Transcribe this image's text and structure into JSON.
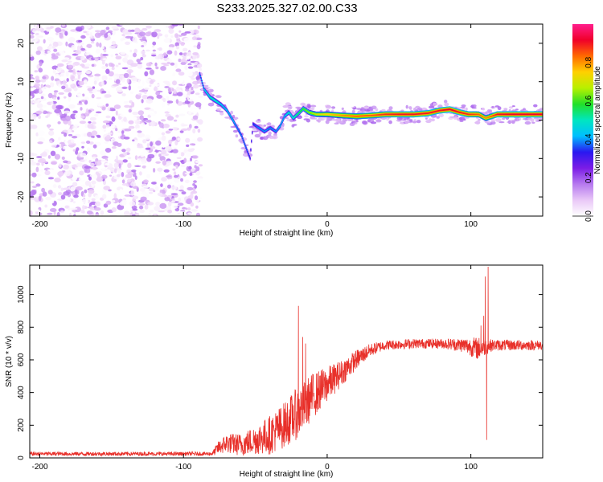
{
  "figure": {
    "title": "S233.2025.327.02.00.C33"
  },
  "chart_data": [
    {
      "type": "heatmap",
      "id": "spectrogram",
      "title": "S233.2025.327.02.00.C33",
      "xlabel": "Height of straight line (km)",
      "ylabel": "Frequency (Hz)",
      "xlim": [
        -207,
        150
      ],
      "ylim": [
        -25,
        25
      ],
      "xticks": [
        -200,
        -100,
        0,
        100
      ],
      "yticks": [
        -20,
        -10,
        0,
        10,
        20
      ],
      "colorbar": {
        "label": "Normalized spectral amplitude",
        "range": [
          0,
          1
        ],
        "ticks": [
          "0.0",
          "0.2",
          "0.4",
          "0.6",
          "0.8"
        ],
        "tick_values": [
          0,
          0.2,
          0.4,
          0.6,
          0.8
        ],
        "colors": [
          "#ffffff",
          "#e9c8f7",
          "#b678ef",
          "#7b1ce6",
          "#2a18f0",
          "#00bfff",
          "#00e6c0",
          "#22e028",
          "#b8f000",
          "#ffd000",
          "#ff6a00",
          "#f0002a",
          "#ff1e8c"
        ]
      },
      "noise_region": {
        "x_range": [
          -207,
          -88
        ],
        "freq_range": [
          -25,
          25
        ]
      },
      "ridge": [
        {
          "x": -89,
          "freq": 12,
          "amp": 0.4
        },
        {
          "x": -86,
          "freq": 8,
          "amp": 0.45
        },
        {
          "x": -82,
          "freq": 6,
          "amp": 0.5
        },
        {
          "x": -78,
          "freq": 5,
          "amp": 0.5
        },
        {
          "x": -74,
          "freq": 4,
          "amp": 0.45
        },
        {
          "x": -70,
          "freq": 2.5,
          "amp": 0.45
        },
        {
          "x": -66,
          "freq": 0,
          "amp": 0.45
        },
        {
          "x": -63,
          "freq": -2,
          "amp": 0.4
        },
        {
          "x": -60,
          "freq": -4,
          "amp": 0.4
        },
        {
          "x": -57,
          "freq": -7,
          "amp": 0.4
        },
        {
          "x": -54,
          "freq": -10,
          "amp": 0.35
        },
        {
          "x": -52,
          "freq": -1,
          "amp": 0.35
        },
        {
          "x": -48,
          "freq": -2,
          "amp": 0.4
        },
        {
          "x": -44,
          "freq": -3,
          "amp": 0.4
        },
        {
          "x": -40,
          "freq": -2,
          "amp": 0.4
        },
        {
          "x": -36,
          "freq": -3,
          "amp": 0.4
        },
        {
          "x": -33,
          "freq": -1.5,
          "amp": 0.45
        },
        {
          "x": -30,
          "freq": 1,
          "amp": 0.45
        },
        {
          "x": -27,
          "freq": 2,
          "amp": 0.5
        },
        {
          "x": -24,
          "freq": 0.5,
          "amp": 0.5
        },
        {
          "x": -21,
          "freq": 1.5,
          "amp": 0.55
        },
        {
          "x": -17,
          "freq": 3,
          "amp": 0.6
        },
        {
          "x": -13,
          "freq": 2,
          "amp": 0.65
        },
        {
          "x": -8,
          "freq": 1.5,
          "amp": 0.7
        },
        {
          "x": 0,
          "freq": 1.5,
          "amp": 0.75
        },
        {
          "x": 10,
          "freq": 1.2,
          "amp": 0.8
        },
        {
          "x": 20,
          "freq": 1.0,
          "amp": 0.85
        },
        {
          "x": 30,
          "freq": 1.2,
          "amp": 0.85
        },
        {
          "x": 40,
          "freq": 1.5,
          "amp": 0.88
        },
        {
          "x": 50,
          "freq": 1.5,
          "amp": 0.9
        },
        {
          "x": 60,
          "freq": 1.5,
          "amp": 0.9
        },
        {
          "x": 70,
          "freq": 1.8,
          "amp": 0.9
        },
        {
          "x": 78,
          "freq": 2.5,
          "amp": 0.9
        },
        {
          "x": 85,
          "freq": 2.8,
          "amp": 0.92
        },
        {
          "x": 92,
          "freq": 2.0,
          "amp": 0.9
        },
        {
          "x": 98,
          "freq": 1.5,
          "amp": 0.88
        },
        {
          "x": 105,
          "freq": 1.5,
          "amp": 0.85
        },
        {
          "x": 110,
          "freq": 0.5,
          "amp": 0.8
        },
        {
          "x": 118,
          "freq": 1.5,
          "amp": 0.9
        },
        {
          "x": 130,
          "freq": 1.5,
          "amp": 0.92
        },
        {
          "x": 150,
          "freq": 1.5,
          "amp": 0.92
        }
      ]
    },
    {
      "type": "line",
      "id": "snr",
      "title": "",
      "xlabel": "Height of straight line (km)",
      "ylabel": "SNR (10 * v/v)",
      "xlim": [
        -207,
        150
      ],
      "ylim": [
        0,
        1180
      ],
      "xticks": [
        -200,
        -100,
        0,
        100
      ],
      "yticks": [
        0,
        200,
        400,
        600,
        800,
        1000
      ],
      "series": [
        {
          "name": "SNR",
          "color": "#e8302a",
          "envelope": [
            {
              "x": -207,
              "y": 25,
              "noise": 12
            },
            {
              "x": -80,
              "y": 25,
              "noise": 12
            },
            {
              "x": -76,
              "y": 60,
              "noise": 40
            },
            {
              "x": -70,
              "y": 90,
              "noise": 60
            },
            {
              "x": -60,
              "y": 80,
              "noise": 70
            },
            {
              "x": -50,
              "y": 110,
              "noise": 90
            },
            {
              "x": -40,
              "y": 140,
              "noise": 120
            },
            {
              "x": -30,
              "y": 200,
              "noise": 140
            },
            {
              "x": -20,
              "y": 280,
              "noise": 160
            },
            {
              "x": -10,
              "y": 380,
              "noise": 140
            },
            {
              "x": 0,
              "y": 450,
              "noise": 110
            },
            {
              "x": 10,
              "y": 520,
              "noise": 80
            },
            {
              "x": 20,
              "y": 600,
              "noise": 60
            },
            {
              "x": 30,
              "y": 660,
              "noise": 40
            },
            {
              "x": 40,
              "y": 690,
              "noise": 30
            },
            {
              "x": 60,
              "y": 700,
              "noise": 30
            },
            {
              "x": 80,
              "y": 700,
              "noise": 30
            },
            {
              "x": 95,
              "y": 690,
              "noise": 45
            },
            {
              "x": 105,
              "y": 670,
              "noise": 70
            },
            {
              "x": 115,
              "y": 690,
              "noise": 35
            },
            {
              "x": 150,
              "y": 690,
              "noise": 30
            }
          ],
          "spikes": [
            {
              "x": -20,
              "y": 930
            },
            {
              "x": -17,
              "y": 740
            },
            {
              "x": -15,
              "y": 700
            },
            {
              "x": 107,
              "y": 810
            },
            {
              "x": 109,
              "y": 870
            },
            {
              "x": 110,
              "y": 1110
            },
            {
              "x": 111,
              "y": 110
            },
            {
              "x": 112,
              "y": 1170
            }
          ]
        }
      ]
    }
  ]
}
